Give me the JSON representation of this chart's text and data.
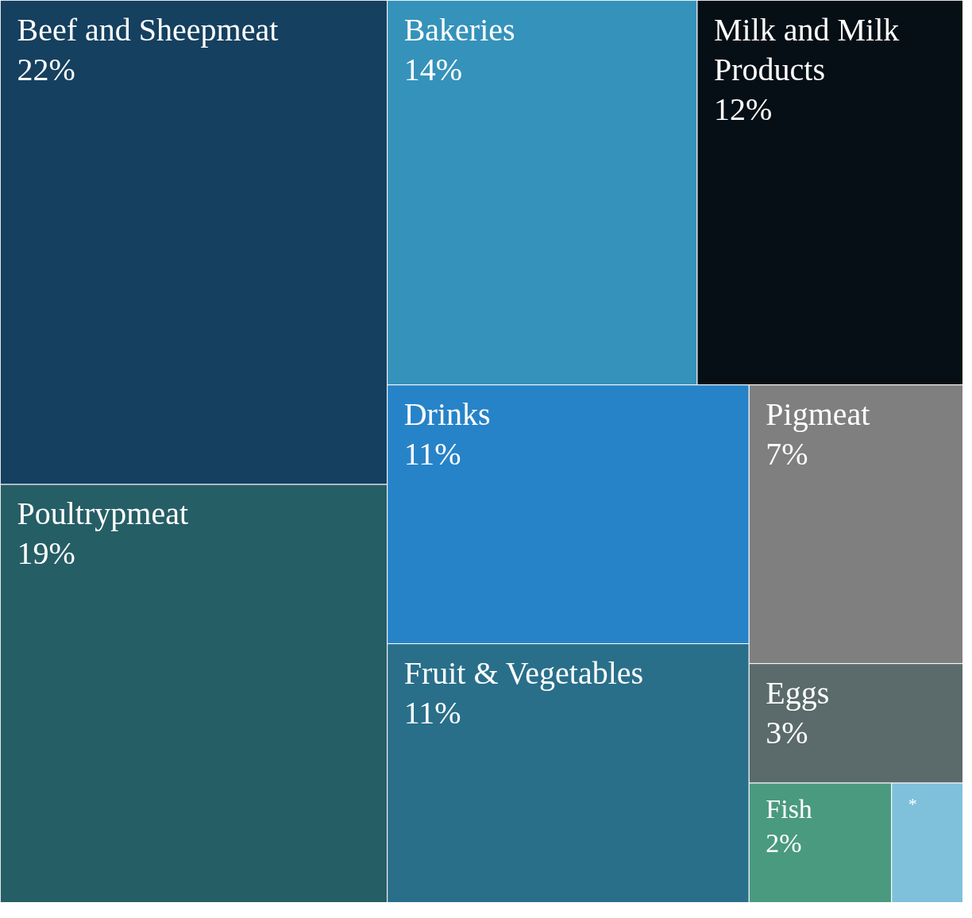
{
  "chart_data": {
    "type": "other",
    "categories": [
      "Beef and Sheepmeat",
      "Poultrypmeat",
      "Bakeries",
      "Milk and Milk Products",
      "Drinks",
      "Fruit & Vegetables",
      "Pigmeat",
      "Eggs",
      "Fish",
      "*"
    ],
    "values": [
      22,
      19,
      14,
      12,
      11,
      11,
      7,
      3,
      2,
      null
    ],
    "value_labels": [
      "22%",
      "19%",
      "14%",
      "12%",
      "11%",
      "11%",
      "7%",
      "3%",
      "2%",
      null
    ],
    "colors": [
      "#15405f",
      "#265e66",
      "#3592ba",
      "#070f16",
      "#2783c8",
      "#296f8a",
      "#7f7f7f",
      "#5b6a6a",
      "#4a9a80",
      "#7fc0db"
    ]
  }
}
